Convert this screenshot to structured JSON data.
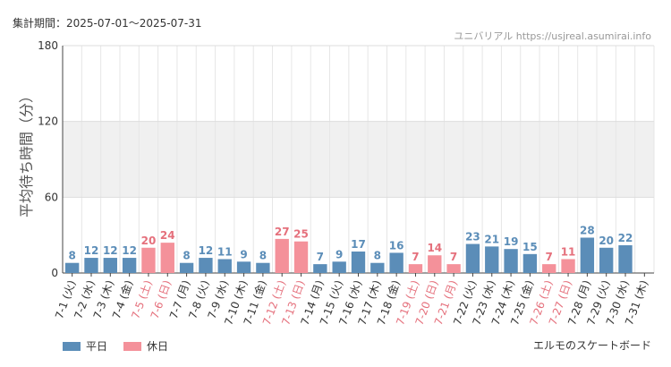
{
  "header": {
    "period_label": "集計期間：2025-07-01～2025-07-31",
    "site": "ユニバリアル  https://usjreal.asumirai.info"
  },
  "footer": {
    "attraction": "エルモのスケートボード"
  },
  "colors": {
    "weekday": "#5b8db8",
    "holiday": "#f4919a",
    "holiday_text": "#e5707c",
    "band": "#f0f0f0",
    "grid": "#e6e6e6"
  },
  "chart_data": {
    "type": "bar",
    "ylabel": "平均待ち時間（分）",
    "ylim": [
      0,
      180
    ],
    "yticks": [
      0,
      60,
      120,
      180
    ],
    "legend": [
      {
        "name": "平日",
        "key": "weekday"
      },
      {
        "name": "休日",
        "key": "holiday"
      }
    ],
    "legend_position": "bottom-left",
    "categories": [
      "7-1 (火)",
      "7-2 (水)",
      "7-3 (木)",
      "7-4 (金)",
      "7-5 (土)",
      "7-6 (日)",
      "7-7 (月)",
      "7-8 (火)",
      "7-9 (水)",
      "7-10 (木)",
      "7-11 (金)",
      "7-12 (土)",
      "7-13 (日)",
      "7-14 (月)",
      "7-15 (火)",
      "7-16 (水)",
      "7-17 (木)",
      "7-18 (金)",
      "7-19 (土)",
      "7-20 (日)",
      "7-21 (月)",
      "7-22 (火)",
      "7-23 (水)",
      "7-24 (木)",
      "7-25 (金)",
      "7-26 (土)",
      "7-27 (日)",
      "7-28 (月)",
      "7-29 (火)",
      "7-30 (水)",
      "7-31 (木)"
    ],
    "values": [
      8,
      12,
      12,
      12,
      20,
      24,
      8,
      12,
      11,
      9,
      8,
      27,
      25,
      7,
      9,
      17,
      8,
      16,
      7,
      14,
      7,
      23,
      21,
      19,
      15,
      7,
      11,
      28,
      20,
      22,
      null
    ],
    "holiday": [
      false,
      false,
      false,
      false,
      true,
      true,
      false,
      false,
      false,
      false,
      false,
      true,
      true,
      false,
      false,
      false,
      false,
      false,
      true,
      true,
      true,
      false,
      false,
      false,
      false,
      true,
      true,
      false,
      false,
      false,
      false
    ]
  }
}
